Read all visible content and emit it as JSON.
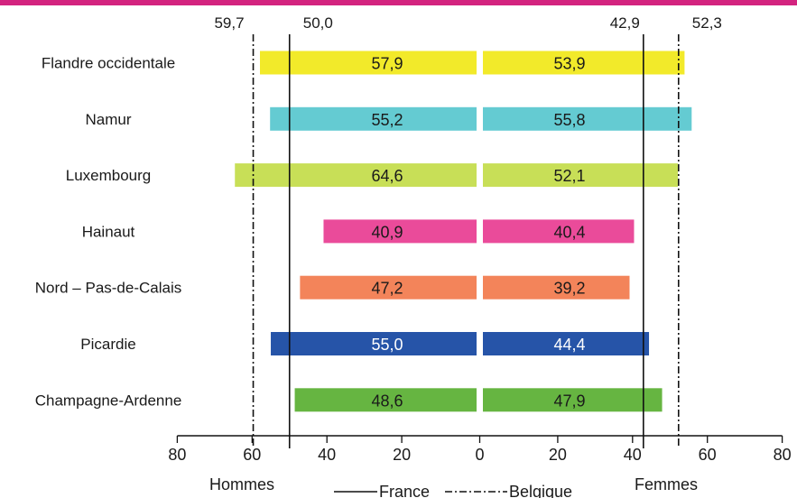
{
  "top_bar_color": "#d3237f",
  "chart_data": {
    "type": "bar",
    "orientation": "horizontal",
    "layout": "population-pyramid",
    "categories": [
      "Flandre occidentale",
      "Namur",
      "Luxembourg",
      "Hainaut",
      "Nord – Pas-de-Calais",
      "Picardie",
      "Champagne-Ardenne"
    ],
    "series": [
      {
        "name": "Hommes",
        "side": "left",
        "values": [
          57.9,
          55.2,
          64.6,
          40.9,
          47.2,
          55.0,
          48.6
        ],
        "value_labels": [
          "57,9",
          "55,2",
          "64,6",
          "40,9",
          "47,2",
          "55,0",
          "48,6"
        ]
      },
      {
        "name": "Femmes",
        "side": "right",
        "values": [
          53.9,
          55.8,
          52.1,
          40.4,
          39.2,
          44.4,
          47.9
        ],
        "value_labels": [
          "53,9",
          "55,8",
          "52,1",
          "40,4",
          "39,2",
          "44,4",
          "47,9"
        ]
      }
    ],
    "bar_colors": [
      "#f2ea2a",
      "#64cbd2",
      "#c8df57",
      "#ea4b9a",
      "#f3845a",
      "#2654a8",
      "#66b541"
    ],
    "label_text_colors": [
      "#1a1a1a",
      "#1a1a1a",
      "#1a1a1a",
      "#1a1a1a",
      "#1a1a1a",
      "#ffffff",
      "#1a1a1a"
    ],
    "reference_lines": [
      {
        "name": "France",
        "style": "solid",
        "side": "left",
        "value": 50.0,
        "label": "50,0"
      },
      {
        "name": "France",
        "style": "solid",
        "side": "right",
        "value": 42.9,
        "label": "42,9"
      },
      {
        "name": "Belgique",
        "style": "dash-dot",
        "side": "left",
        "value": 59.7,
        "label": "59,7"
      },
      {
        "name": "Belgique",
        "style": "dash-dot",
        "side": "right",
        "value": 52.3,
        "label": "52,3"
      }
    ],
    "x_ticks": [
      80,
      60,
      40,
      20,
      0,
      20,
      40,
      60,
      80
    ],
    "xlim": [
      0,
      80
    ],
    "left_axis_title": "Hommes",
    "right_axis_title": "Femmes",
    "legend": [
      {
        "label": "France",
        "style": "solid"
      },
      {
        "label": "Belgique",
        "style": "dash-dot"
      }
    ],
    "grid": false
  }
}
